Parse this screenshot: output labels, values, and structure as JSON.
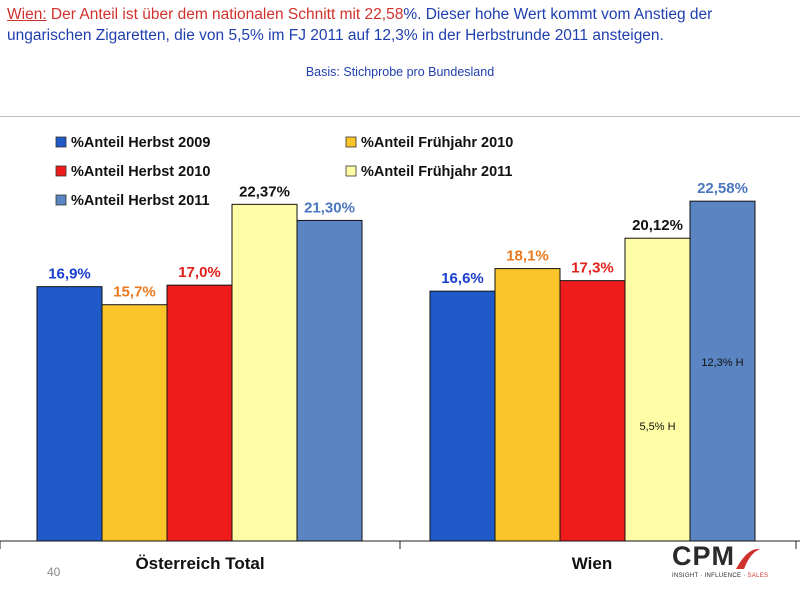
{
  "headline": {
    "prefix": "Wien:",
    "red_text": " Der Anteil ist über dem nationalen Schnitt mit 22,58",
    "blue_text": "%. Dieser hohe Wert kommt vom Anstieg der ungarischen Zigaretten, die von 5,5% im FJ 2011 auf 12,3% in der Herbstrunde 2011 ansteigen."
  },
  "basis": "Basis: Stichprobe pro Bundesland",
  "page_number": "40",
  "logo": {
    "name": "CPM",
    "tagline": "INSIGHT · INFLUENCE · ",
    "tagline_sales": "SALES"
  },
  "chart_data": {
    "type": "bar",
    "categories": [
      "Österreich Total",
      "Wien"
    ],
    "ylim": [
      0,
      25
    ],
    "series": [
      {
        "name": "%Anteil Herbst 2009",
        "color": "#1f5ac8",
        "label_color": "#1a3fd0",
        "values": [
          16.9,
          16.6
        ],
        "labels": [
          "16,9%",
          "16,6%"
        ]
      },
      {
        "name": "%Anteil Frühjahr 2010",
        "color": "#fbc52a",
        "label_color": "#ea7a1f",
        "values": [
          15.7,
          18.1
        ],
        "labels": [
          "15,7%",
          "18,1%"
        ]
      },
      {
        "name": "%Anteil Herbst 2010",
        "color": "#ee1c1c",
        "label_color": "#e0201a",
        "values": [
          17.0,
          17.3
        ],
        "labels": [
          "17,0%",
          "17,3%"
        ]
      },
      {
        "name": "%Anteil Frühjahr 2011",
        "color": "#fefda6",
        "label_color": "#111111",
        "values": [
          22.37,
          20.12
        ],
        "labels": [
          "22,37%",
          "20,12%"
        ]
      },
      {
        "name": "%Anteil Herbst 2011",
        "color": "#5b84c3",
        "label_color": "#4a76c0",
        "values": [
          21.3,
          22.58
        ],
        "labels": [
          "21,30%",
          "22,58%"
        ]
      }
    ],
    "annotations": [
      {
        "category": 1,
        "series": 3,
        "text": "5,5% H"
      },
      {
        "category": 1,
        "series": 4,
        "text": "12,3% H"
      }
    ]
  }
}
